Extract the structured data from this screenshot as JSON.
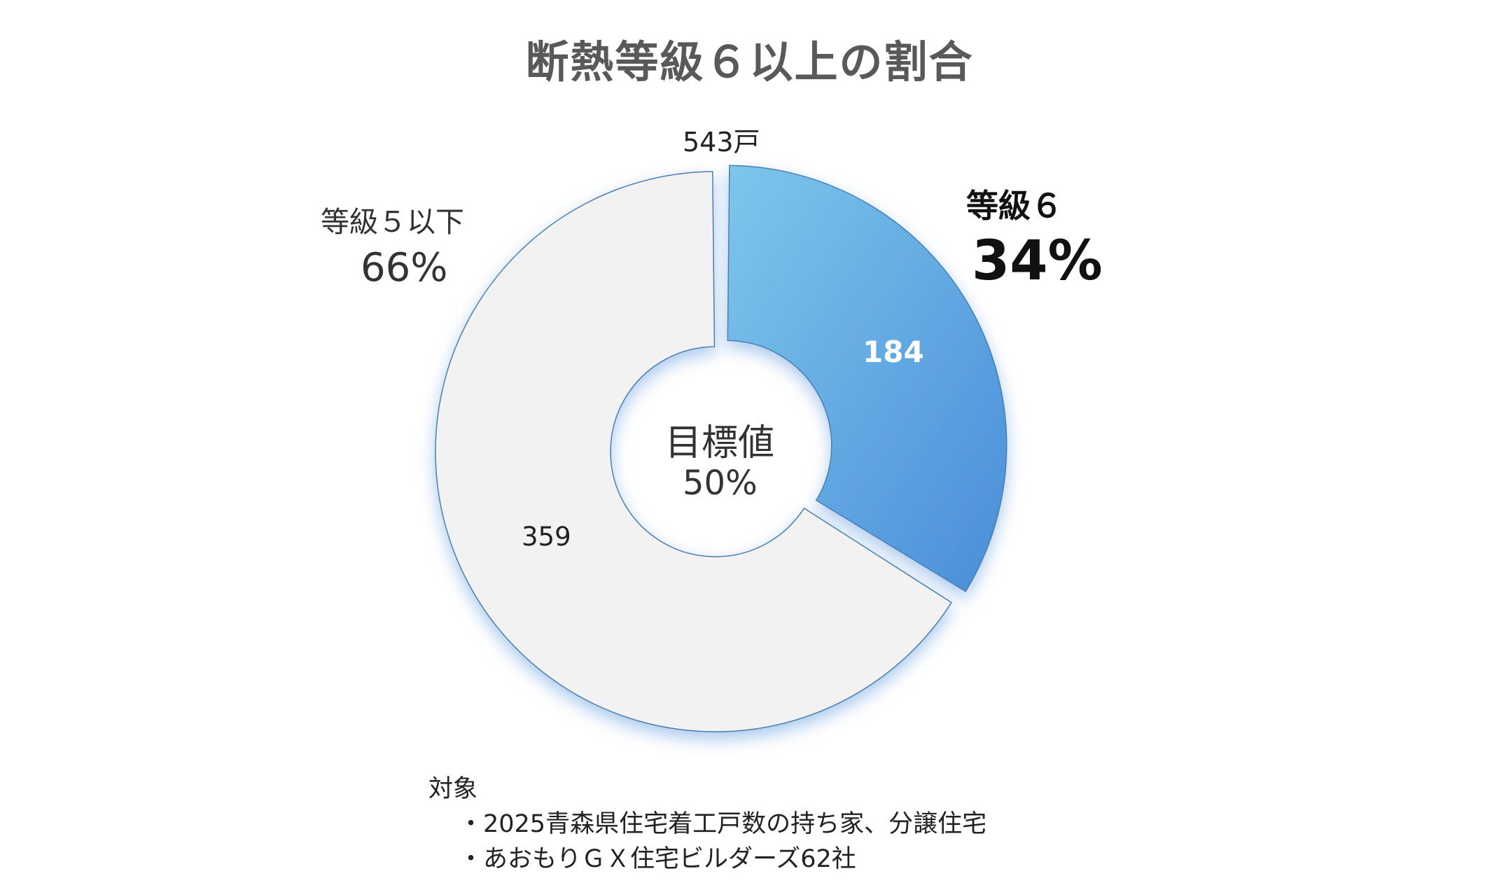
{
  "chart_data": {
    "type": "pie",
    "title": "断熱等級６以上の割合",
    "total_label": "543戸",
    "slices": [
      {
        "name": "等級６",
        "value": 184,
        "value_label": "184",
        "percent_label": "34%",
        "color_start": "#7CC7EC",
        "color_end": "#4A8DD9",
        "exploded": true
      },
      {
        "name": "等級５以下",
        "value": 359,
        "value_label": "359",
        "percent_label": "66%",
        "color_start": "#F2F2F2",
        "color_end": "#F2F2F2",
        "exploded": false
      }
    ],
    "center": {
      "title": "目標値",
      "value": "50%"
    },
    "edge_color": "#4A7FB2",
    "glow_color": "#8DB8E8",
    "legend": "none"
  },
  "notes": {
    "heading": "対象",
    "items": [
      "・2025青森県住宅着工戸数の持ち家、分譲住宅",
      "・あおもりＧＸ住宅ビルダーズ62社"
    ]
  }
}
